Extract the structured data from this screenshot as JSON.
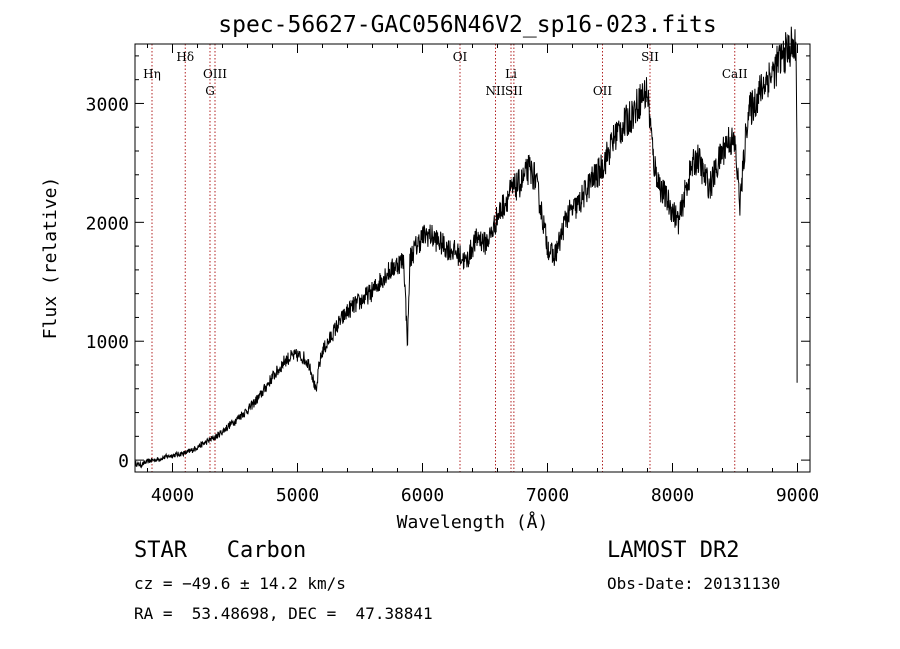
{
  "chart_data": {
    "type": "line",
    "title": "spec-56627-GAC056N46V2_sp16-023.fits",
    "xlabel": "Wavelength (Å)",
    "ylabel": "Flux (relative)",
    "xlim": [
      3700,
      9100
    ],
    "ylim": [
      -100,
      3500
    ],
    "xticks": [
      4000,
      5000,
      6000,
      7000,
      8000,
      9000
    ],
    "yticks": [
      0,
      1000,
      2000,
      3000
    ],
    "grid": false,
    "series": [
      {
        "x": [
          3700,
          3750,
          3800,
          3850,
          3900,
          3950,
          4000,
          4050,
          4100,
          4150,
          4200,
          4250,
          4300,
          4350,
          4400,
          4450,
          4500,
          4550,
          4600,
          4650,
          4700,
          4750,
          4800,
          4850,
          4900,
          4950,
          5000,
          5050,
          5100,
          5150,
          5170,
          5200,
          5250,
          5300,
          5350,
          5400,
          5450,
          5500,
          5550,
          5600,
          5650,
          5700,
          5750,
          5800,
          5850,
          5880,
          5900,
          5950,
          6000,
          6050,
          6100,
          6150,
          6200,
          6250,
          6300,
          6350,
          6400,
          6450,
          6500,
          6550,
          6600,
          6650,
          6700,
          6750,
          6800,
          6850,
          6900,
          6950,
          7000,
          7050,
          7100,
          7150,
          7200,
          7250,
          7300,
          7350,
          7400,
          7450,
          7500,
          7550,
          7600,
          7650,
          7700,
          7750,
          7800,
          7850,
          7900,
          7950,
          8000,
          8050,
          8100,
          8150,
          8200,
          8250,
          8300,
          8350,
          8400,
          8450,
          8500,
          8540,
          8600,
          8650,
          8700,
          8750,
          8800,
          8850,
          8900,
          8950,
          8990
        ],
        "y": [
          -30,
          -40,
          -10,
          0,
          10,
          30,
          40,
          50,
          60,
          80,
          110,
          140,
          170,
          200,
          240,
          290,
          330,
          380,
          420,
          480,
          540,
          620,
          700,
          760,
          840,
          870,
          880,
          860,
          800,
          560,
          780,
          920,
          1000,
          1100,
          1180,
          1250,
          1300,
          1330,
          1380,
          1420,
          1490,
          1560,
          1600,
          1650,
          1680,
          980,
          1700,
          1800,
          1880,
          1900,
          1860,
          1820,
          1780,
          1760,
          1720,
          1660,
          1800,
          1880,
          1820,
          1900,
          2050,
          2150,
          2250,
          2300,
          2350,
          2450,
          2380,
          2100,
          1800,
          1700,
          1850,
          2050,
          2100,
          2150,
          2250,
          2350,
          2400,
          2500,
          2620,
          2750,
          2800,
          2870,
          2950,
          3050,
          3100,
          2500,
          2300,
          2200,
          2100,
          2000,
          2250,
          2450,
          2550,
          2400,
          2300,
          2450,
          2600,
          2700,
          2650,
          2150,
          2900,
          3000,
          3100,
          3200,
          3250,
          3350,
          3420,
          3480,
          3450
        ]
      }
    ],
    "line_markers": [
      {
        "label": "Hη",
        "x": 3836,
        "row": 0
      },
      {
        "label": "Hδ",
        "x": 4102,
        "row": -1
      },
      {
        "label": "OIII",
        "x": 4340,
        "row": 0
      },
      {
        "label": "G",
        "x": 4300,
        "row": 1
      },
      {
        "label": "OI",
        "x": 6300,
        "row": -1
      },
      {
        "label": "NII",
        "x": 6584,
        "row": 1
      },
      {
        "label": "Li",
        "x": 6708,
        "row": 0
      },
      {
        "label": "SII",
        "x": 6731,
        "row": 1
      },
      {
        "label": "OII",
        "x": 7440,
        "row": 1
      },
      {
        "label": "SII",
        "x": 7820,
        "row": -1
      },
      {
        "label": "CaII",
        "x": 8498,
        "row": 0
      }
    ],
    "colors": {
      "spectrum": "#000000",
      "marker": "#b22222",
      "axis": "#000000"
    }
  },
  "info": {
    "class_label": "STAR   Carbon",
    "cz": "cz = −49.6 ± 14.2 km/s",
    "radec": "RA =  53.48698, DEC =  47.38841",
    "survey": "LAMOST DR2",
    "obs_date": "Obs-Date: 20131130"
  }
}
